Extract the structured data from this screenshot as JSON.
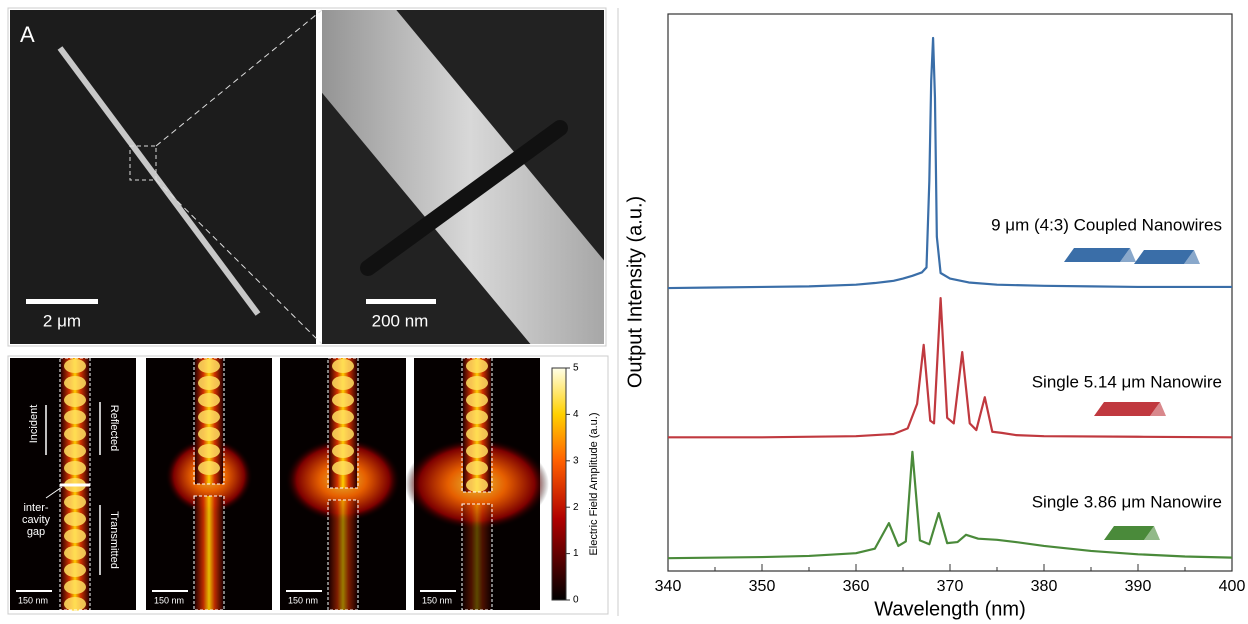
{
  "sem": {
    "panel_label": "A",
    "scale_left": "2 μm",
    "scale_right": "200 nm"
  },
  "field_maps": {
    "incident": "Incident",
    "reflected": "Reflected",
    "gap": [
      "inter-",
      "cavity",
      "gap"
    ],
    "transmitted": "Transmitted",
    "scale_bars": [
      "150 nm",
      "150 nm",
      "150 nm",
      "150 nm"
    ],
    "colorbar": {
      "label": "Electric Field Amplitude (a.u.)",
      "ticks": [
        0,
        1,
        2,
        3,
        4,
        5
      ]
    }
  },
  "chart_data": {
    "type": "line",
    "xlabel": "Wavelength (nm)",
    "ylabel": "Output Intensity (a.u.)",
    "xlim": [
      340,
      400
    ],
    "xticks": [
      340,
      350,
      360,
      370,
      380,
      390,
      400
    ],
    "ylim": [
      0,
      100
    ],
    "series": [
      {
        "name": "9 μm (4:3) Coupled Nanowires",
        "color": "#3a6ea8",
        "x": [
          340,
          345,
          350,
          355,
          360,
          362,
          364,
          365,
          366,
          367,
          367.5,
          367.8,
          368.0,
          368.2,
          368.4,
          368.6,
          369,
          370,
          372,
          375,
          380,
          385,
          390,
          395,
          400
        ],
        "values": [
          50.8,
          50.9,
          51,
          51.1,
          51.4,
          51.7,
          52.1,
          52.5,
          53,
          53.6,
          54.5,
          70,
          88,
          95.7,
          85,
          60,
          53.5,
          52.5,
          51.8,
          51.4,
          51.2,
          51.1,
          51,
          51,
          51
        ]
      },
      {
        "name": "Single 5.14 μm Nanowire",
        "color": "#c0393f",
        "x": [
          340,
          350,
          360,
          364,
          365.5,
          366.5,
          367.2,
          367.9,
          368.3,
          369.0,
          369.7,
          370.4,
          371.3,
          372.1,
          372.8,
          373.7,
          374.5,
          375.5,
          377,
          380,
          390,
          400
        ],
        "values": [
          24,
          24,
          24.2,
          24.6,
          25.6,
          30,
          40.6,
          27,
          26.5,
          49,
          27.5,
          26.5,
          39.3,
          26.5,
          25.3,
          31.2,
          25,
          24.8,
          24.4,
          24.2,
          24.1,
          24
        ]
      },
      {
        "name": "Single 3.86 μm Nanowire",
        "color": "#4a8a3a",
        "x": [
          340,
          350,
          355,
          360,
          362,
          363.5,
          364.5,
          365.3,
          366,
          366.8,
          367.8,
          368.8,
          369.7,
          370.8,
          371.7,
          373,
          375,
          377,
          380,
          385,
          390,
          395,
          400
        ],
        "values": [
          2.3,
          2.5,
          2.7,
          3.2,
          4,
          8.6,
          4.5,
          5.3,
          21.4,
          5.5,
          4.8,
          10.4,
          5,
          5.2,
          6.5,
          5.8,
          5.6,
          5.2,
          4.5,
          3.6,
          3,
          2.6,
          2.4
        ]
      }
    ]
  }
}
